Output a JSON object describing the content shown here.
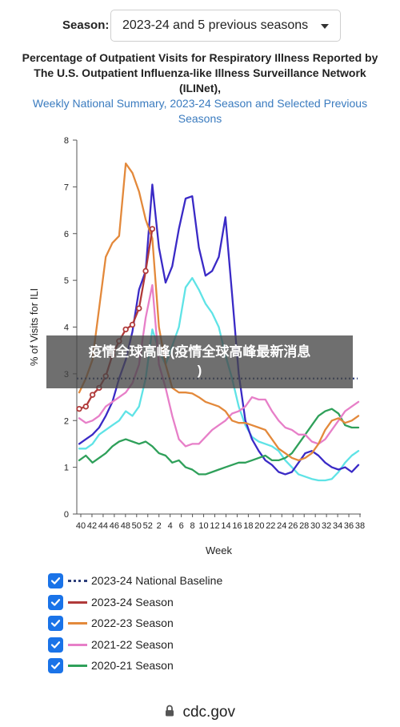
{
  "season_selector": {
    "label": "Season:",
    "selected": "2023-24 and 5 previous seasons"
  },
  "title_lines": [
    "Percentage of Outpatient Visits for Respiratory Illness Reported by",
    "The U.S. Outpatient Influenza-like Illness Surveillance Network",
    "(ILINet),"
  ],
  "subtitle_lines": [
    "Weekly National Summary, 2023-24 Season and Selected Previous",
    "Seasons"
  ],
  "watermark": {
    "line1": "疫情全球高峰(疫情全球高峰最新消息",
    "line2": ")"
  },
  "footer": {
    "domain": "cdc.gov"
  },
  "colors": {
    "baseline": "#2c3e7a",
    "s2023": "#b03a3a",
    "s2022": "#e3893b",
    "s2021": "#e77fc8",
    "s2020": "#2fa05a",
    "s2019": "#3a2ac6",
    "s2018": "#5fe3e6",
    "checkbox": "#1a73e8"
  },
  "chart_data": {
    "type": "line",
    "xlabel": "Week",
    "ylabel": "% of Visits for ILI",
    "ylim": [
      0,
      8
    ],
    "yticks": [
      "0",
      "1",
      "2",
      "3",
      "4",
      "5",
      "6",
      "7",
      "8"
    ],
    "x_tick_labels": [
      "40",
      "42",
      "44",
      "46",
      "48",
      "50",
      "52",
      "2",
      "4",
      "6",
      "8",
      "10",
      "12",
      "14",
      "16",
      "18",
      "20",
      "22",
      "24",
      "26",
      "28",
      "30",
      "32",
      "34",
      "36",
      "38"
    ],
    "baseline": {
      "name": "2023-24 National Baseline",
      "value": 2.9
    },
    "series": [
      {
        "key": "s2023",
        "name": "2023-24 Season",
        "legend": true,
        "markers": true,
        "values": [
          2.25,
          2.3,
          2.55,
          2.7,
          2.95,
          3.4,
          3.7,
          3.95,
          4.05,
          4.4,
          5.2,
          6.1
        ]
      },
      {
        "key": "s2022",
        "name": "2022-23 Season",
        "legend": true,
        "values": [
          2.6,
          2.9,
          3.3,
          4.4,
          5.5,
          5.8,
          5.95,
          7.5,
          7.3,
          6.9,
          6.3,
          5.9,
          4.0,
          3.2,
          2.7,
          2.6,
          2.6,
          2.58,
          2.5,
          2.4,
          2.35,
          2.3,
          2.2,
          2.0,
          1.95,
          1.95,
          1.9,
          1.85,
          1.8,
          1.6,
          1.4,
          1.3,
          1.2,
          1.15,
          1.2,
          1.3,
          1.5,
          1.8,
          2.0,
          2.05,
          1.95,
          2.0,
          2.1
        ]
      },
      {
        "key": "s2021",
        "name": "2021-22 Season",
        "legend": true,
        "values": [
          2.05,
          1.95,
          2.0,
          2.1,
          2.3,
          2.4,
          2.5,
          2.6,
          2.8,
          3.2,
          4.2,
          4.9,
          3.2,
          2.7,
          2.1,
          1.6,
          1.45,
          1.5,
          1.5,
          1.65,
          1.8,
          1.9,
          2.0,
          2.15,
          2.2,
          2.3,
          2.5,
          2.45,
          2.45,
          2.2,
          2.0,
          1.85,
          1.8,
          1.7,
          1.7,
          1.55,
          1.5,
          1.6,
          1.8,
          2.0,
          2.2,
          2.3,
          2.4
        ]
      },
      {
        "key": "s2020",
        "name": "2020-21 Season",
        "legend": true,
        "values": [
          1.15,
          1.25,
          1.1,
          1.2,
          1.3,
          1.45,
          1.55,
          1.6,
          1.55,
          1.5,
          1.55,
          1.45,
          1.3,
          1.25,
          1.1,
          1.15,
          1.0,
          0.95,
          0.85,
          0.85,
          0.9,
          0.95,
          1.0,
          1.05,
          1.1,
          1.1,
          1.15,
          1.2,
          1.25,
          1.15,
          1.15,
          1.2,
          1.3,
          1.5,
          1.7,
          1.9,
          2.1,
          2.2,
          2.25,
          2.15,
          1.9,
          1.85,
          1.85
        ]
      },
      {
        "key": "s2019",
        "name": "",
        "legend": false,
        "values": [
          1.5,
          1.6,
          1.7,
          1.85,
          2.1,
          2.4,
          2.9,
          3.3,
          3.9,
          4.8,
          5.2,
          7.05,
          5.7,
          4.95,
          5.3,
          6.1,
          6.75,
          6.8,
          5.7,
          5.1,
          5.2,
          5.5,
          6.35,
          4.7,
          3.0,
          2.0,
          1.6,
          1.35,
          1.15,
          1.05,
          0.9,
          0.85,
          0.9,
          1.1,
          1.3,
          1.35,
          1.25,
          1.1,
          1.0,
          0.95,
          1.0,
          0.9,
          1.05
        ]
      },
      {
        "key": "s2018",
        "name": "",
        "legend": false,
        "values": [
          1.4,
          1.4,
          1.5,
          1.7,
          1.8,
          1.9,
          2.0,
          2.2,
          2.1,
          2.3,
          2.9,
          3.95,
          3.5,
          3.2,
          3.6,
          4.0,
          4.85,
          5.05,
          4.8,
          4.5,
          4.3,
          4.0,
          3.4,
          2.9,
          2.3,
          1.9,
          1.65,
          1.55,
          1.5,
          1.45,
          1.35,
          1.15,
          1.0,
          0.85,
          0.8,
          0.75,
          0.72,
          0.72,
          0.75,
          0.9,
          1.1,
          1.25,
          1.35
        ]
      }
    ]
  },
  "legend": [
    {
      "key": "baseline",
      "label": "2023-24 National Baseline",
      "dashed": true
    },
    {
      "key": "s2023",
      "label": "2023-24 Season"
    },
    {
      "key": "s2022",
      "label": "2022-23 Season"
    },
    {
      "key": "s2021",
      "label": "2021-22 Season"
    },
    {
      "key": "s2020",
      "label": "2020-21 Season"
    }
  ]
}
